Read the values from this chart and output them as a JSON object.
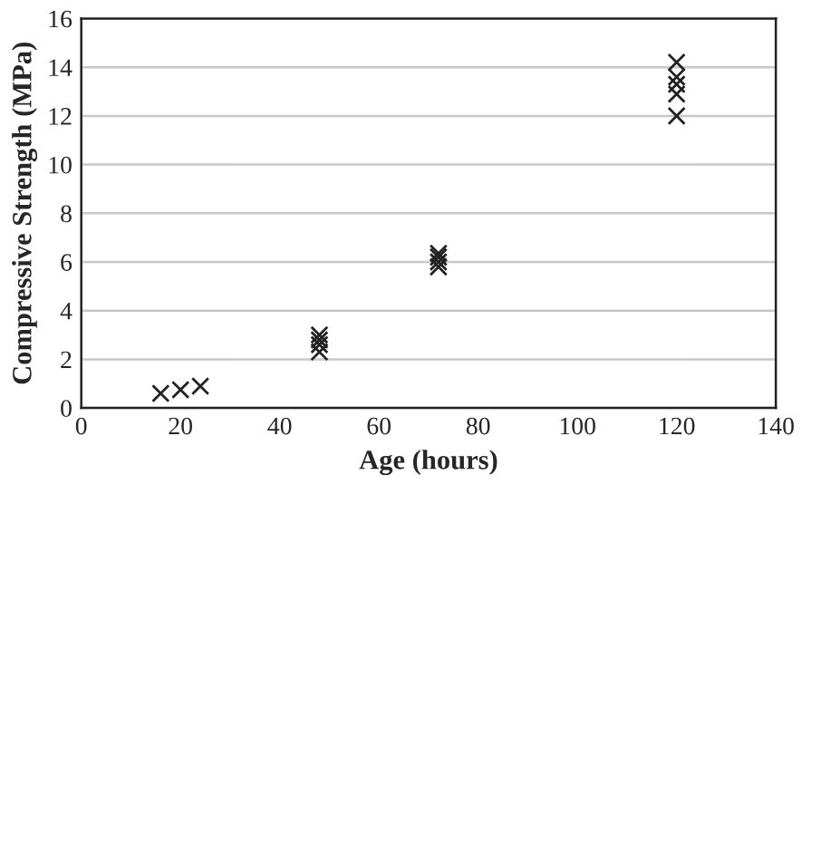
{
  "chart_data": {
    "type": "scatter",
    "xlabel": "Age (hours)",
    "ylabel": "Compressive Strength (MPa)",
    "x": [
      16,
      20,
      24,
      48,
      48,
      48,
      48,
      72,
      72,
      72,
      72,
      120,
      120,
      120,
      120,
      120
    ],
    "values": [
      0.6,
      0.75,
      0.9,
      2.3,
      2.6,
      2.8,
      3.0,
      5.8,
      6.0,
      6.2,
      6.35,
      12.0,
      12.9,
      13.3,
      13.6,
      14.2
    ],
    "color": "#222222",
    "marker": "cross",
    "xlim": [
      0,
      140
    ],
    "xticks": [
      0,
      20,
      40,
      60,
      80,
      100,
      120,
      140
    ],
    "ylim": [
      0,
      16
    ],
    "yticks": [
      0,
      2,
      4,
      6,
      8,
      10,
      12,
      14,
      16
    ],
    "grid": "y",
    "legend": false
  }
}
